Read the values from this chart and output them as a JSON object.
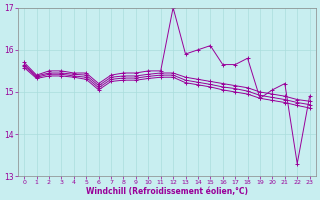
{
  "xlabel": "Windchill (Refroidissement éolien,°C)",
  "bg_color": "#c8eef0",
  "grid_color": "#aadddd",
  "line_color": "#990099",
  "ylim": [
    13,
    17
  ],
  "xlim": [
    -0.5,
    23.5
  ],
  "yticks": [
    13,
    14,
    15,
    16,
    17
  ],
  "xticks": [
    0,
    1,
    2,
    3,
    4,
    5,
    6,
    7,
    8,
    9,
    10,
    11,
    12,
    13,
    14,
    15,
    16,
    17,
    18,
    19,
    20,
    21,
    22,
    23
  ],
  "series": [
    [
      15.7,
      15.4,
      15.5,
      15.5,
      15.45,
      15.45,
      15.2,
      15.4,
      15.45,
      15.45,
      15.5,
      15.5,
      17.0,
      15.9,
      16.0,
      16.1,
      15.65,
      15.65,
      15.8,
      14.85,
      15.05,
      15.2,
      13.3,
      14.9
    ],
    [
      15.65,
      15.38,
      15.45,
      15.45,
      15.42,
      15.4,
      15.15,
      15.35,
      15.38,
      15.38,
      15.42,
      15.45,
      15.45,
      15.35,
      15.3,
      15.25,
      15.2,
      15.15,
      15.1,
      15.0,
      14.95,
      14.9,
      14.82,
      14.78
    ],
    [
      15.62,
      15.35,
      15.42,
      15.42,
      15.38,
      15.35,
      15.1,
      15.3,
      15.33,
      15.33,
      15.37,
      15.4,
      15.4,
      15.28,
      15.23,
      15.18,
      15.12,
      15.08,
      15.02,
      14.92,
      14.87,
      14.82,
      14.75,
      14.7
    ],
    [
      15.58,
      15.32,
      15.38,
      15.38,
      15.35,
      15.3,
      15.05,
      15.25,
      15.28,
      15.28,
      15.32,
      15.35,
      15.35,
      15.22,
      15.17,
      15.12,
      15.05,
      15.0,
      14.95,
      14.85,
      14.8,
      14.75,
      14.68,
      14.62
    ]
  ]
}
